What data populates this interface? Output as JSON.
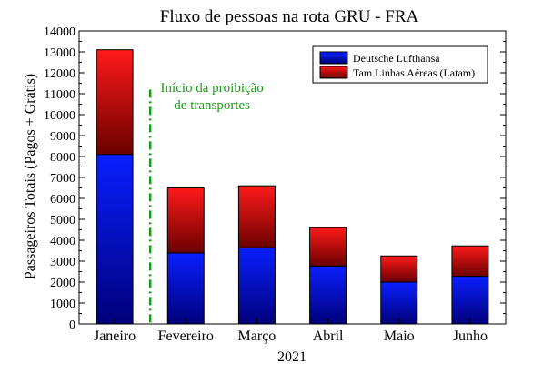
{
  "chart_data": {
    "type": "bar",
    "stacked": true,
    "title": "Fluxo de pessoas na rota GRU - FRA",
    "xlabel": "2021",
    "ylabel": "Passageiros Totais (Pagos + Grátis)",
    "categories": [
      "Janeiro",
      "Fevereiro",
      "Março",
      "Abril",
      "Maio",
      "Junho"
    ],
    "series": [
      {
        "name": "Deutsche Lufthansa",
        "values": [
          8100,
          3400,
          3650,
          2770,
          2000,
          2280
        ],
        "color": "#0a1fff"
      },
      {
        "name": "Tam Linhas Aéreas (Latam)",
        "values": [
          5000,
          3100,
          2950,
          1830,
          1250,
          1450
        ],
        "color": "#ff1a1a"
      }
    ],
    "ylim": [
      0,
      14000
    ],
    "yticks": [
      0,
      1000,
      2000,
      3000,
      4000,
      5000,
      6000,
      7000,
      8000,
      9000,
      10000,
      11000,
      12000,
      13000,
      14000
    ],
    "grid": false,
    "legend_position": "top-right",
    "annotation": {
      "lines": [
        "Início da proibição",
        "de transportes"
      ],
      "between_categories": [
        "Janeiro",
        "Fevereiro"
      ],
      "color": "#1a9a1a"
    }
  }
}
